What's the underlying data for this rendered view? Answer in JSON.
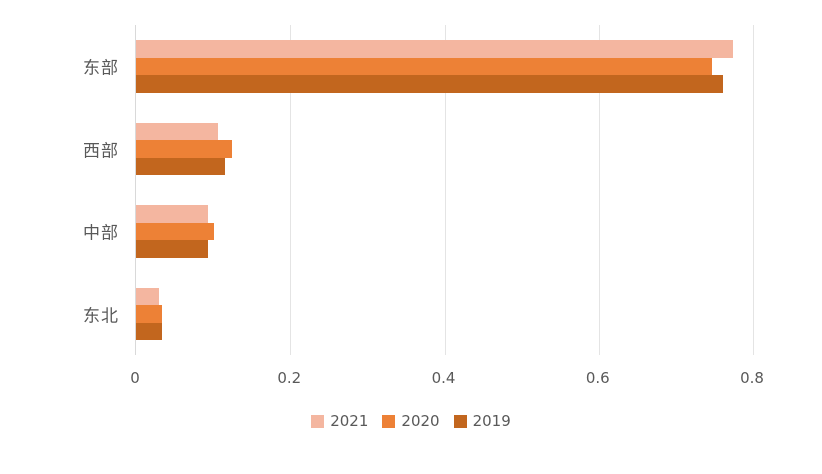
{
  "chart_data": {
    "type": "bar",
    "orientation": "horizontal",
    "title": "",
    "xlabel": "",
    "ylabel": "",
    "categories": [
      "东部",
      "西部",
      "中部",
      "东北"
    ],
    "series": [
      {
        "name": "2021",
        "color": "#F4B6A0",
        "values": [
          0.774,
          0.106,
          0.093,
          0.03
        ]
      },
      {
        "name": "2020",
        "color": "#ED8136",
        "values": [
          0.747,
          0.125,
          0.101,
          0.034
        ]
      },
      {
        "name": "2019",
        "color": "#C2661E",
        "values": [
          0.761,
          0.115,
          0.093,
          0.034
        ]
      }
    ],
    "xlim": [
      0,
      0.8
    ],
    "x_ticks": [
      0,
      0.2,
      0.4,
      0.6,
      0.8
    ],
    "x_tick_labels": [
      "0",
      "0.2",
      "0.4",
      "0.6",
      "0.8"
    ],
    "grid": "vertical-gridlines-on",
    "legend_position": "bottom-center",
    "colors": {
      "axis_line": "#D9D9D9",
      "gridline": "#E4E4E4",
      "text": "#595959",
      "background": "#FFFFFF"
    }
  }
}
